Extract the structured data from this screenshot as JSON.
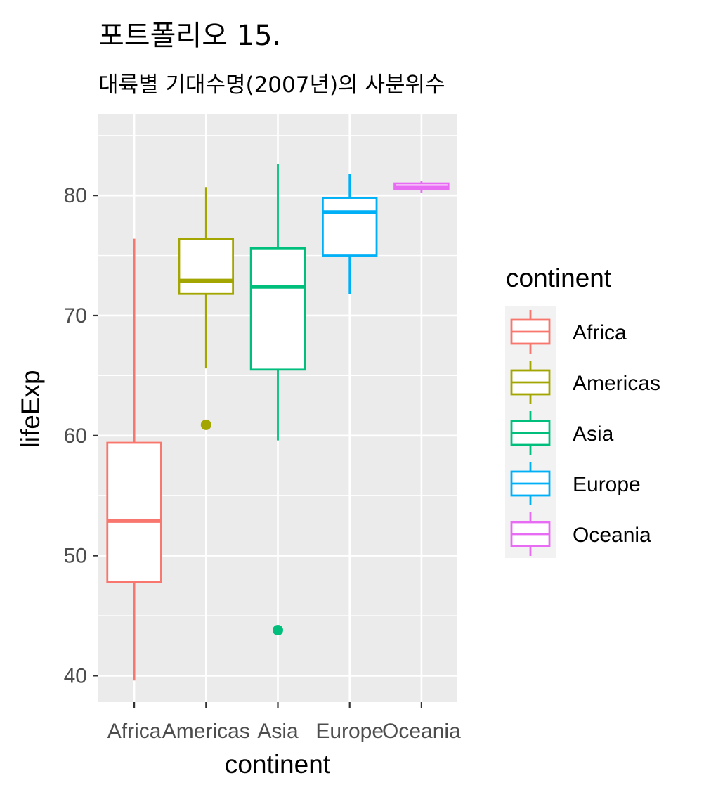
{
  "chart_data": {
    "type": "boxplot",
    "title": "포트폴리오 15.",
    "subtitle": "대륙별 기대수명(2007년)의 사분위수",
    "xlabel": "continent",
    "ylabel": "lifeExp",
    "ylim": [
      37.8,
      86.8
    ],
    "yticks": [
      40,
      50,
      60,
      70,
      80
    ],
    "grid": true,
    "legend": {
      "title": "continent",
      "placement": "right"
    },
    "categories": [
      "Africa",
      "Americas",
      "Asia",
      "Europe",
      "Oceania"
    ],
    "series": [
      {
        "name": "Africa",
        "color": "#F8766D",
        "whisker_low": 39.6,
        "q1": 47.8,
        "median": 52.9,
        "q3": 59.4,
        "whisker_high": 76.4,
        "outliers": []
      },
      {
        "name": "Americas",
        "color": "#A3A500",
        "whisker_low": 65.6,
        "q1": 71.8,
        "median": 72.9,
        "q3": 76.4,
        "whisker_high": 80.7,
        "outliers": [
          60.9
        ]
      },
      {
        "name": "Asia",
        "color": "#00BF7D",
        "whisker_low": 59.6,
        "q1": 65.5,
        "median": 72.4,
        "q3": 75.6,
        "whisker_high": 82.6,
        "outliers": [
          43.8
        ]
      },
      {
        "name": "Europe",
        "color": "#00B0F6",
        "whisker_low": 71.8,
        "q1": 75.0,
        "median": 78.6,
        "q3": 79.8,
        "whisker_high": 81.8,
        "outliers": []
      },
      {
        "name": "Oceania",
        "color": "#E76BF3",
        "whisker_low": 80.2,
        "q1": 80.5,
        "median": 80.7,
        "q3": 81.0,
        "whisker_high": 81.2,
        "outliers": []
      }
    ]
  }
}
